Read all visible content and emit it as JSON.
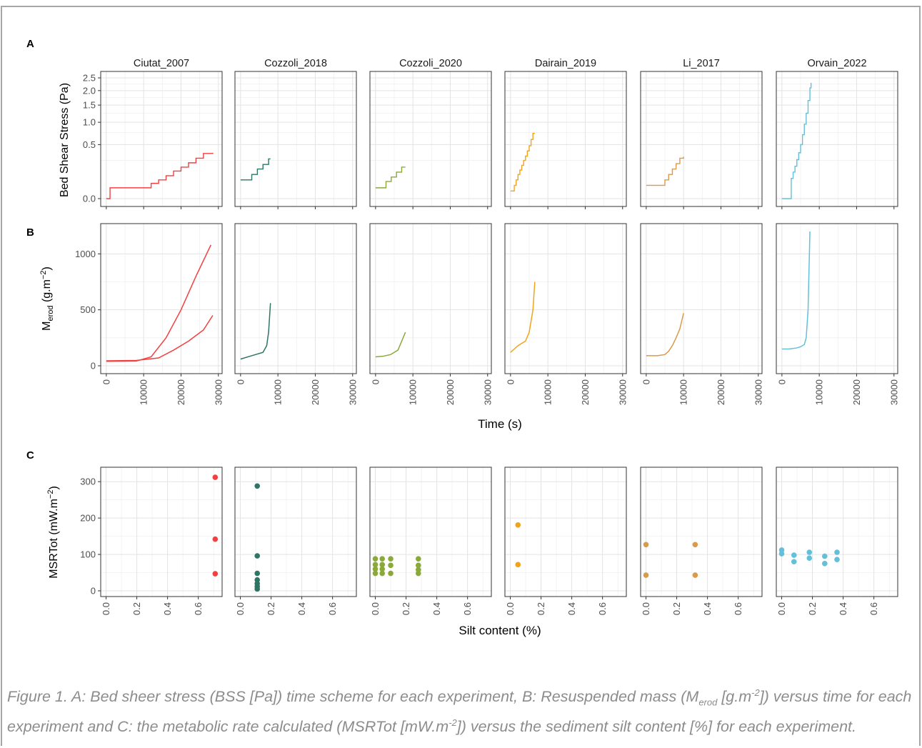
{
  "panel_labels": [
    "A",
    "B",
    "C"
  ],
  "experiments": [
    "Ciutat_2007",
    "Cozzoli_2018",
    "Cozzoli_2020",
    "Dairain_2019",
    "Li_2017",
    "Orvain_2022"
  ],
  "colors": [
    "#f24040",
    "#2d7565",
    "#8aa93a",
    "#f1a41b",
    "#d99a4a",
    "#63c0d8"
  ],
  "row_a": {
    "ylabel": "Bed Shear Stress (Pa)",
    "yticks": [
      "0.0",
      "0.5",
      "1.0",
      "1.5",
      "2.0",
      "2.5"
    ]
  },
  "row_b": {
    "ylabel_main": "M",
    "ylabel_sub": "erod",
    "ylabel_unit": " (g.m",
    "ylabel_sup": "−2",
    "ylabel_close": ")",
    "yticks": [
      "0",
      "500",
      "1000"
    ],
    "xticks": [
      "0",
      "10000",
      "20000",
      "30000"
    ],
    "xlabel": "Time (s)"
  },
  "row_c": {
    "ylabel_main": "MSRTot (mW.m",
    "ylabel_sup": "−2",
    "ylabel_close": ")",
    "yticks": [
      "0",
      "100",
      "200",
      "300"
    ],
    "xticks": [
      "0.0",
      "0.2",
      "0.4",
      "0.6"
    ],
    "xlabel": "Silt content (%)"
  },
  "caption": {
    "p1": "Figure 1. A: Bed sheer stress (BSS [Pa]) time scheme for each experiment, B: Resuspended mass (M",
    "p1_sub": "erod",
    "p2": " [g.m",
    "p2_sup": "-2",
    "p3": "]) versus time for each experiment and C: the metabolic rate calculated (MSRTot [mW.m",
    "p3_sup": "-2",
    "p4": "]) versus the sediment silt content [%] for each experiment."
  },
  "chart_data": [
    {
      "panel": "A",
      "type": "line",
      "x_label": "",
      "y_label": "Bed Shear Stress (Pa)",
      "y_scale": "sqrt",
      "xlim": [
        0,
        30000
      ],
      "ylim": [
        0,
        2.5
      ],
      "series": [
        {
          "name": "Ciutat_2007",
          "x": [
            0,
            1000,
            12000,
            14000,
            16000,
            18000,
            20000,
            22000,
            24000,
            26000,
            28500
          ],
          "y": [
            0.0,
            0.02,
            0.04,
            0.06,
            0.09,
            0.13,
            0.17,
            0.22,
            0.28,
            0.35,
            0.36
          ]
        },
        {
          "name": "Cozzoli_2018",
          "x": [
            0,
            1500,
            3000,
            4500,
            6000,
            7500,
            8000
          ],
          "y": [
            0.06,
            0.06,
            0.1,
            0.15,
            0.2,
            0.27,
            0.27
          ]
        },
        {
          "name": "Cozzoli_2020",
          "x": [
            0,
            1400,
            2800,
            4200,
            5600,
            7000,
            8000
          ],
          "y": [
            0.02,
            0.02,
            0.05,
            0.08,
            0.12,
            0.17,
            0.17
          ]
        },
        {
          "name": "Dairain_2019",
          "x": [
            0,
            500,
            1000,
            1500,
            2000,
            2500,
            3000,
            3500,
            4000,
            4500,
            5000,
            5500,
            6000,
            6500
          ],
          "y": [
            0.01,
            0.01,
            0.03,
            0.06,
            0.1,
            0.14,
            0.19,
            0.25,
            0.31,
            0.39,
            0.48,
            0.6,
            0.73,
            0.73
          ]
        },
        {
          "name": "Li_2017",
          "x": [
            0,
            3000,
            5000,
            6000,
            7000,
            8000,
            9000,
            10000
          ],
          "y": [
            0.03,
            0.03,
            0.06,
            0.1,
            0.15,
            0.21,
            0.28,
            0.3
          ]
        },
        {
          "name": "Orvain_2022",
          "x": [
            0,
            2000,
            2500,
            3000,
            3500,
            4000,
            4500,
            5000,
            5500,
            6000,
            6500,
            7000,
            7500,
            7800
          ],
          "y": [
            0.0,
            0.0,
            0.07,
            0.12,
            0.18,
            0.26,
            0.36,
            0.5,
            0.7,
            0.95,
            1.25,
            1.65,
            2.1,
            2.3
          ]
        }
      ]
    },
    {
      "panel": "B",
      "type": "line",
      "x_label": "Time (s)",
      "y_label": "Merod (g.m−2)",
      "xlim": [
        0,
        30000
      ],
      "ylim": [
        0,
        1200
      ],
      "series": [
        {
          "name": "Ciutat_2007",
          "x": [
            0,
            8000,
            12000,
            16000,
            20000,
            24000,
            28000
          ],
          "y": [
            40,
            42,
            80,
            250,
            500,
            800,
            1080
          ]
        },
        {
          "name": "Ciutat_2007",
          "x": [
            0,
            8000,
            14000,
            18000,
            22000,
            26000,
            28500
          ],
          "y": [
            45,
            48,
            70,
            140,
            220,
            320,
            450
          ]
        },
        {
          "name": "Cozzoli_2018",
          "x": [
            0,
            2000,
            4000,
            6000,
            7000,
            7500,
            8000
          ],
          "y": [
            60,
            80,
            100,
            120,
            180,
            300,
            560
          ]
        },
        {
          "name": "Cozzoli_2020",
          "x": [
            0,
            2000,
            4000,
            6000,
            7000,
            8000
          ],
          "y": [
            80,
            85,
            100,
            140,
            220,
            300
          ]
        },
        {
          "name": "Dairain_2019",
          "x": [
            0,
            1000,
            2000,
            3000,
            4000,
            5000,
            6000,
            6500
          ],
          "y": [
            120,
            150,
            180,
            200,
            220,
            300,
            500,
            750
          ]
        },
        {
          "name": "Li_2017",
          "x": [
            0,
            3000,
            5000,
            6000,
            7000,
            8000,
            9000,
            10000
          ],
          "y": [
            90,
            90,
            100,
            130,
            180,
            250,
            330,
            470
          ]
        },
        {
          "name": "Orvain_2022",
          "x": [
            0,
            2000,
            4000,
            5000,
            6000,
            6500,
            7000,
            7500
          ],
          "y": [
            150,
            150,
            160,
            170,
            190,
            250,
            500,
            1200
          ]
        }
      ]
    },
    {
      "panel": "C",
      "type": "scatter",
      "x_label": "Silt content (%)",
      "y_label": "MSRTot (mW.m−2)",
      "xlim": [
        0,
        0.7
      ],
      "ylim": [
        0,
        320
      ],
      "series": [
        {
          "name": "Ciutat_2007",
          "x": [
            0.71,
            0.71,
            0.71
          ],
          "y": [
            312,
            142,
            47
          ]
        },
        {
          "name": "Cozzoli_2018",
          "x": [
            0.11,
            0.11,
            0.11,
            0.11,
            0.11,
            0.11,
            0.11
          ],
          "y": [
            288,
            96,
            48,
            30,
            20,
            12,
            5
          ]
        },
        {
          "name": "Cozzoli_2020",
          "x": [
            0.0,
            0.0,
            0.0,
            0.0,
            0.045,
            0.045,
            0.045,
            0.045,
            0.1,
            0.1,
            0.1,
            0.28,
            0.28,
            0.28,
            0.28
          ],
          "y": [
            88,
            72,
            60,
            48,
            88,
            72,
            60,
            48,
            88,
            70,
            48,
            88,
            70,
            58,
            48
          ]
        },
        {
          "name": "Dairain_2019",
          "x": [
            0.05,
            0.05
          ],
          "y": [
            181,
            72
          ]
        },
        {
          "name": "Li_2017",
          "x": [
            0.0,
            0.0,
            0.32,
            0.32
          ],
          "y": [
            127,
            43,
            127,
            43
          ]
        },
        {
          "name": "Orvain_2022",
          "x": [
            0.0,
            0.0,
            0.08,
            0.08,
            0.18,
            0.18,
            0.28,
            0.28,
            0.36,
            0.36
          ],
          "y": [
            112,
            102,
            98,
            80,
            106,
            90,
            95,
            75,
            106,
            86
          ]
        }
      ]
    }
  ]
}
